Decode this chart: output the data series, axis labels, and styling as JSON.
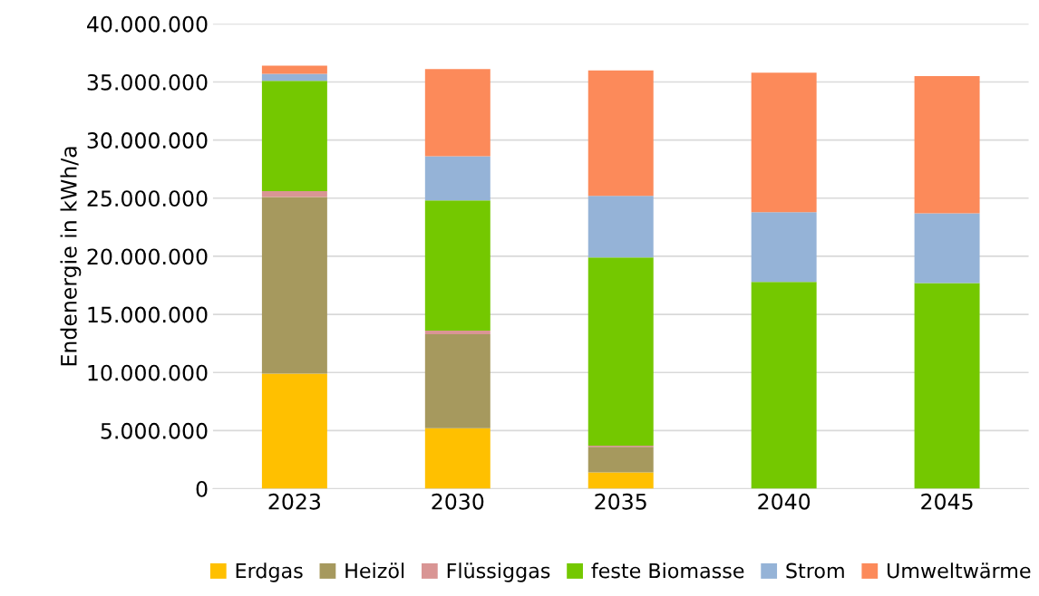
{
  "chart_data": {
    "type": "bar",
    "stacked": true,
    "ylabel": "Endenergie in kWh/a",
    "categories": [
      "2023",
      "2030",
      "2035",
      "2040",
      "2045"
    ],
    "series": [
      {
        "name": "Erdgas",
        "color": "#ffc000",
        "values": [
          9900000,
          5200000,
          1400000,
          0,
          0
        ]
      },
      {
        "name": "Heizöl",
        "color": "#a6995e",
        "values": [
          15200000,
          8100000,
          2200000,
          0,
          0
        ]
      },
      {
        "name": "Flüssiggas",
        "color": "#d99594",
        "values": [
          500000,
          300000,
          100000,
          0,
          0
        ]
      },
      {
        "name": "feste Biomasse",
        "color": "#74c800",
        "values": [
          9500000,
          11200000,
          16200000,
          17800000,
          17700000
        ]
      },
      {
        "name": "Strom",
        "color": "#95b3d7",
        "values": [
          600000,
          3800000,
          5300000,
          6000000,
          6000000
        ]
      },
      {
        "name": "Umweltwärme",
        "color": "#fc8a5a",
        "values": [
          700000,
          7500000,
          10800000,
          12000000,
          11800000
        ]
      }
    ],
    "ylim": [
      0,
      40000000
    ],
    "yticks": [
      {
        "value": 0,
        "label": "0"
      },
      {
        "value": 5000000,
        "label": "5.000.000"
      },
      {
        "value": 10000000,
        "label": "10.000.000"
      },
      {
        "value": 15000000,
        "label": "15.000.000"
      },
      {
        "value": 20000000,
        "label": "20.000.000"
      },
      {
        "value": 25000000,
        "label": "25.000.000"
      },
      {
        "value": 30000000,
        "label": "30.000.000"
      },
      {
        "value": 35000000,
        "label": "35.000.000"
      },
      {
        "value": 40000000,
        "label": "40.000.000"
      }
    ],
    "grid": "y",
    "legend": "bottom"
  }
}
